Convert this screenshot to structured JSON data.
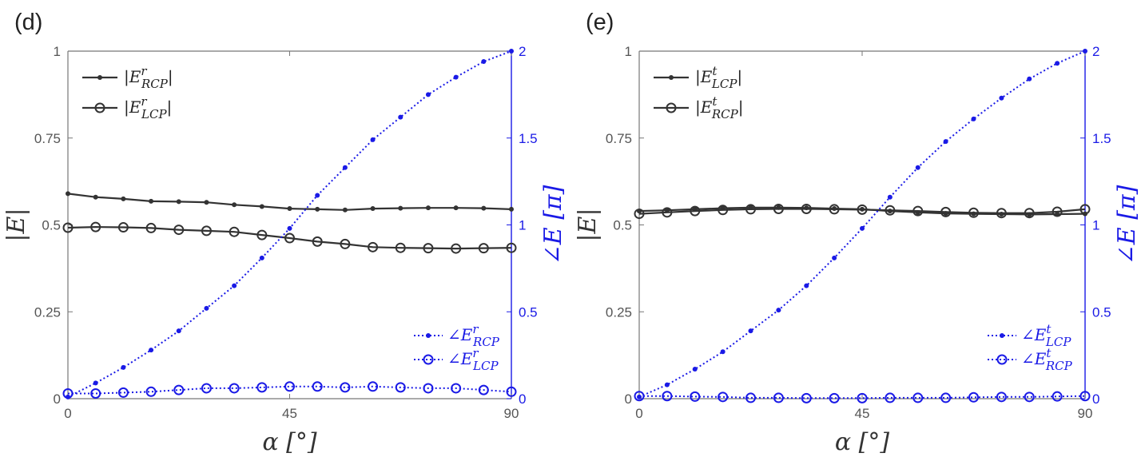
{
  "colors": {
    "magnitude": "#333333",
    "phase": "#1a1ae6",
    "axis_left": "#777777",
    "axis_right": "#1a1ae6"
  },
  "chart_data": [
    {
      "type": "line",
      "panel_label": "(d)",
      "xlabel": "α [°]",
      "ylabel_left": "|E|",
      "ylabel_right": "∠E [π]",
      "xlim": [
        0,
        90
      ],
      "ylim_left": [
        0,
        1
      ],
      "ylim_right": [
        0,
        2
      ],
      "xticks": [
        "0",
        "45",
        "90"
      ],
      "yticks_left": [
        "0",
        "0.25",
        "0.5",
        "0.75",
        "1"
      ],
      "yticks_right": [
        "0",
        "0.5",
        "1",
        "1.5",
        "2"
      ],
      "grid": false,
      "legend_magnitude": "top-left",
      "legend_phase": "bottom-right",
      "x": [
        0,
        5.625,
        11.25,
        16.875,
        22.5,
        28.125,
        33.75,
        39.375,
        45,
        50.625,
        56.25,
        61.875,
        67.5,
        73.125,
        78.75,
        84.375,
        90
      ],
      "series": [
        {
          "base": "|E",
          "sup": "r",
          "sub": "RCP",
          "suffix": "|",
          "axis": "left",
          "style": "solid-dot",
          "values": [
            0.59,
            0.58,
            0.575,
            0.568,
            0.567,
            0.565,
            0.558,
            0.553,
            0.547,
            0.545,
            0.543,
            0.547,
            0.548,
            0.549,
            0.549,
            0.548,
            0.545
          ]
        },
        {
          "base": "|E",
          "sup": "r",
          "sub": "LCP",
          "suffix": "|",
          "axis": "left",
          "style": "solid-circle",
          "values": [
            0.492,
            0.494,
            0.493,
            0.491,
            0.486,
            0.483,
            0.48,
            0.471,
            0.462,
            0.452,
            0.445,
            0.436,
            0.434,
            0.433,
            0.432,
            0.433,
            0.434
          ]
        },
        {
          "base": "∠E",
          "sup": "r",
          "sub": "RCP",
          "suffix": "",
          "axis": "right",
          "style": "dotted-dot",
          "values": [
            0.01,
            0.09,
            0.18,
            0.28,
            0.39,
            0.52,
            0.65,
            0.81,
            0.98,
            1.17,
            1.33,
            1.49,
            1.62,
            1.75,
            1.85,
            1.94,
            2.0
          ]
        },
        {
          "base": "∠E",
          "sup": "r",
          "sub": "LCP",
          "suffix": "",
          "axis": "right",
          "style": "dotted-circle",
          "values": [
            0.03,
            0.03,
            0.035,
            0.04,
            0.05,
            0.06,
            0.06,
            0.065,
            0.07,
            0.07,
            0.065,
            0.07,
            0.065,
            0.06,
            0.06,
            0.05,
            0.04
          ]
        }
      ]
    },
    {
      "type": "line",
      "panel_label": "(e)",
      "xlabel": "α [°]",
      "ylabel_left": "|E|",
      "ylabel_right": "∠E [π]",
      "xlim": [
        0,
        90
      ],
      "ylim_left": [
        0,
        1
      ],
      "ylim_right": [
        0,
        2
      ],
      "xticks": [
        "0",
        "45",
        "90"
      ],
      "yticks_left": [
        "0",
        "0.25",
        "0.5",
        "0.75",
        "1"
      ],
      "yticks_right": [
        "0",
        "0.5",
        "1",
        "1.5",
        "2"
      ],
      "grid": false,
      "legend_magnitude": "top-left",
      "legend_phase": "bottom-right",
      "x": [
        0,
        5.625,
        11.25,
        16.875,
        22.5,
        28.125,
        33.75,
        39.375,
        45,
        50.625,
        56.25,
        61.875,
        67.5,
        73.125,
        78.75,
        84.375,
        90
      ],
      "series": [
        {
          "base": "|E",
          "sup": "t",
          "sub": "LCP",
          "suffix": "|",
          "axis": "left",
          "style": "solid-dot",
          "values": [
            0.54,
            0.542,
            0.545,
            0.548,
            0.55,
            0.55,
            0.549,
            0.547,
            0.545,
            0.54,
            0.536,
            0.533,
            0.532,
            0.531,
            0.53,
            0.531,
            0.532
          ]
        },
        {
          "base": "|E",
          "sup": "t",
          "sub": "RCP",
          "suffix": "|",
          "axis": "left",
          "style": "solid-circle",
          "values": [
            0.532,
            0.536,
            0.54,
            0.543,
            0.545,
            0.546,
            0.546,
            0.545,
            0.544,
            0.542,
            0.54,
            0.537,
            0.535,
            0.534,
            0.534,
            0.538,
            0.545
          ]
        },
        {
          "base": "∠E",
          "sup": "t",
          "sub": "LCP",
          "suffix": "",
          "axis": "right",
          "style": "dotted-dot",
          "values": [
            0.01,
            0.08,
            0.17,
            0.27,
            0.39,
            0.51,
            0.65,
            0.81,
            0.98,
            1.16,
            1.33,
            1.48,
            1.61,
            1.73,
            1.84,
            1.93,
            2.0
          ]
        },
        {
          "base": "∠E",
          "sup": "t",
          "sub": "RCP",
          "suffix": "",
          "axis": "right",
          "style": "dotted-circle",
          "values": [
            0.015,
            0.015,
            0.012,
            0.01,
            0.005,
            0.005,
            0.003,
            0.003,
            0.003,
            0.005,
            0.005,
            0.005,
            0.008,
            0.01,
            0.01,
            0.013,
            0.015
          ]
        }
      ]
    }
  ]
}
